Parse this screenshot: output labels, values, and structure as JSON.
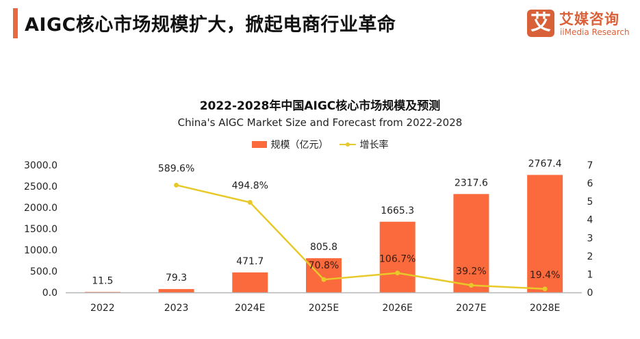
{
  "header": {
    "title": "AIGC核心市场规模扩大，掀起电商行业革命",
    "accent_color": "#e8683f"
  },
  "logo": {
    "mark": "艾",
    "name_cn": "艾媒咨询",
    "name_en": "iiMedia Research",
    "color": "#d9613a"
  },
  "chart_data": {
    "type": "bar",
    "title": "2022-2028年中国AIGC核心市场规模及预测",
    "subtitle": "China's AIGC Market Size and Forecast from 2022-2028",
    "categories": [
      "2022",
      "2023",
      "2024E",
      "2025E",
      "2026E",
      "2027E",
      "2028E"
    ],
    "series": [
      {
        "name": "规模（亿元）",
        "type": "bar",
        "axis": "left",
        "color": "#fb6a3c",
        "values": [
          11.5,
          79.3,
          471.7,
          805.8,
          1665.3,
          2317.6,
          2767.4
        ],
        "labels": [
          "11.5",
          "79.3",
          "471.7",
          "805.8",
          "1665.3",
          "2317.6",
          "2767.4"
        ]
      },
      {
        "name": "增长率",
        "type": "line",
        "axis": "right",
        "color": "#e8c92a",
        "values": [
          null,
          5.896,
          4.948,
          0.708,
          1.067,
          0.392,
          0.194
        ],
        "labels": [
          null,
          "589.6%",
          "494.8%",
          "70.8%",
          "106.7%",
          "39.2%",
          "19.4%"
        ]
      }
    ],
    "left_axis": {
      "min": 0,
      "max": 3000,
      "step": 500,
      "ticks": [
        "0.0",
        "500.0",
        "1000.0",
        "1500.0",
        "2000.0",
        "2500.0",
        "3000.0"
      ]
    },
    "right_axis": {
      "min": 0,
      "max": 7,
      "step": 1,
      "ticks": [
        "0",
        "1",
        "2",
        "3",
        "4",
        "5",
        "6",
        "7"
      ]
    },
    "legend": {
      "position": "top-center"
    },
    "grid": false
  }
}
